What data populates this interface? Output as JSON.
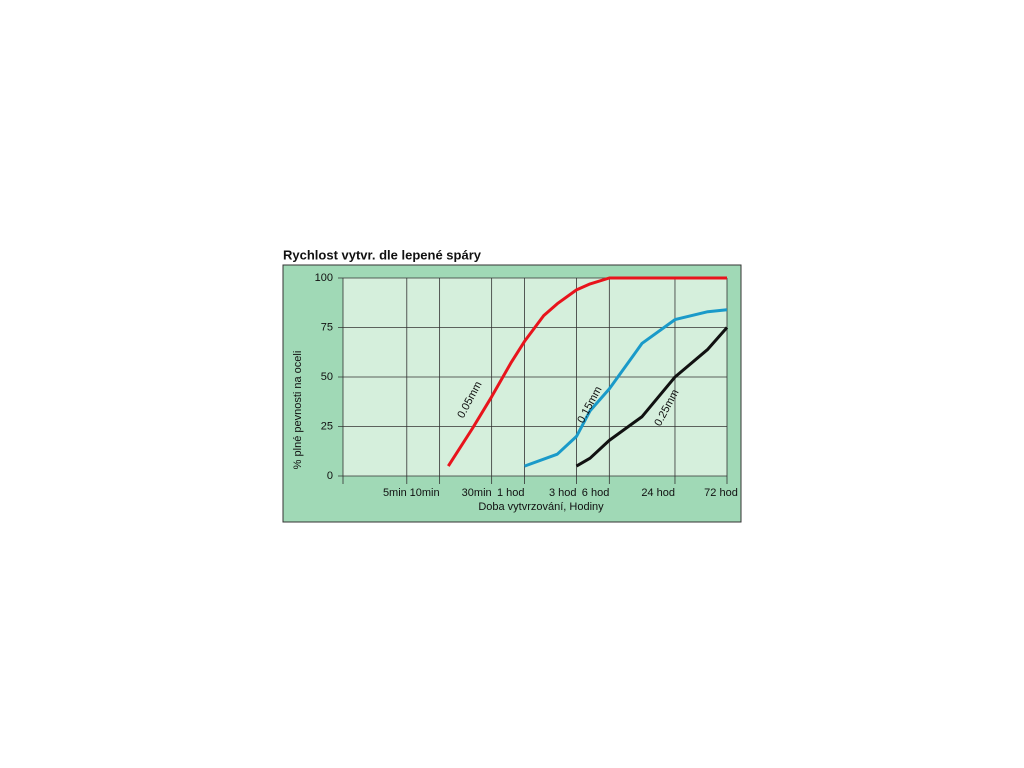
{
  "chart_data": {
    "type": "line",
    "title": "Rychlost vytvr. dle lepené spáry",
    "xlabel": "Doba vytvrzování, Hodiny",
    "ylabel": "% plné pevnosti na oceli",
    "xscale": "log",
    "xlim": [
      1.3,
      4320
    ],
    "xticks": [
      {
        "value": 5,
        "label": "5min"
      },
      {
        "value": 10,
        "label": "10min"
      },
      {
        "value": 30,
        "label": "30min"
      },
      {
        "value": 60,
        "label": "1 hod"
      },
      {
        "value": 180,
        "label": "3 hod"
      },
      {
        "value": 360,
        "label": "6 hod"
      },
      {
        "value": 1440,
        "label": "24 hod"
      },
      {
        "value": 4320,
        "label": "72 hod"
      }
    ],
    "ylim": [
      0,
      100
    ],
    "yticks": [
      0,
      25,
      50,
      75,
      100
    ],
    "grid": true,
    "series": [
      {
        "name": "0.05mm",
        "color": "#e8141c",
        "x": [
          12,
          20,
          30,
          45,
          60,
          90,
          120,
          180,
          240,
          360,
          720,
          4320
        ],
        "values": [
          5,
          24,
          40,
          57,
          68,
          81,
          87,
          94,
          97,
          100,
          100,
          100
        ]
      },
      {
        "name": "0.15mm",
        "color": "#1a9ac9",
        "x": [
          60,
          120,
          180,
          240,
          360,
          720,
          1440,
          2880,
          4320
        ],
        "values": [
          5,
          11,
          20,
          33,
          44,
          67,
          79,
          83,
          84
        ]
      },
      {
        "name": "0.25mm",
        "color": "#111111",
        "x": [
          180,
          240,
          360,
          720,
          1440,
          2880,
          4320
        ],
        "values": [
          5,
          9,
          18,
          30,
          50,
          64,
          75
        ]
      }
    ]
  }
}
